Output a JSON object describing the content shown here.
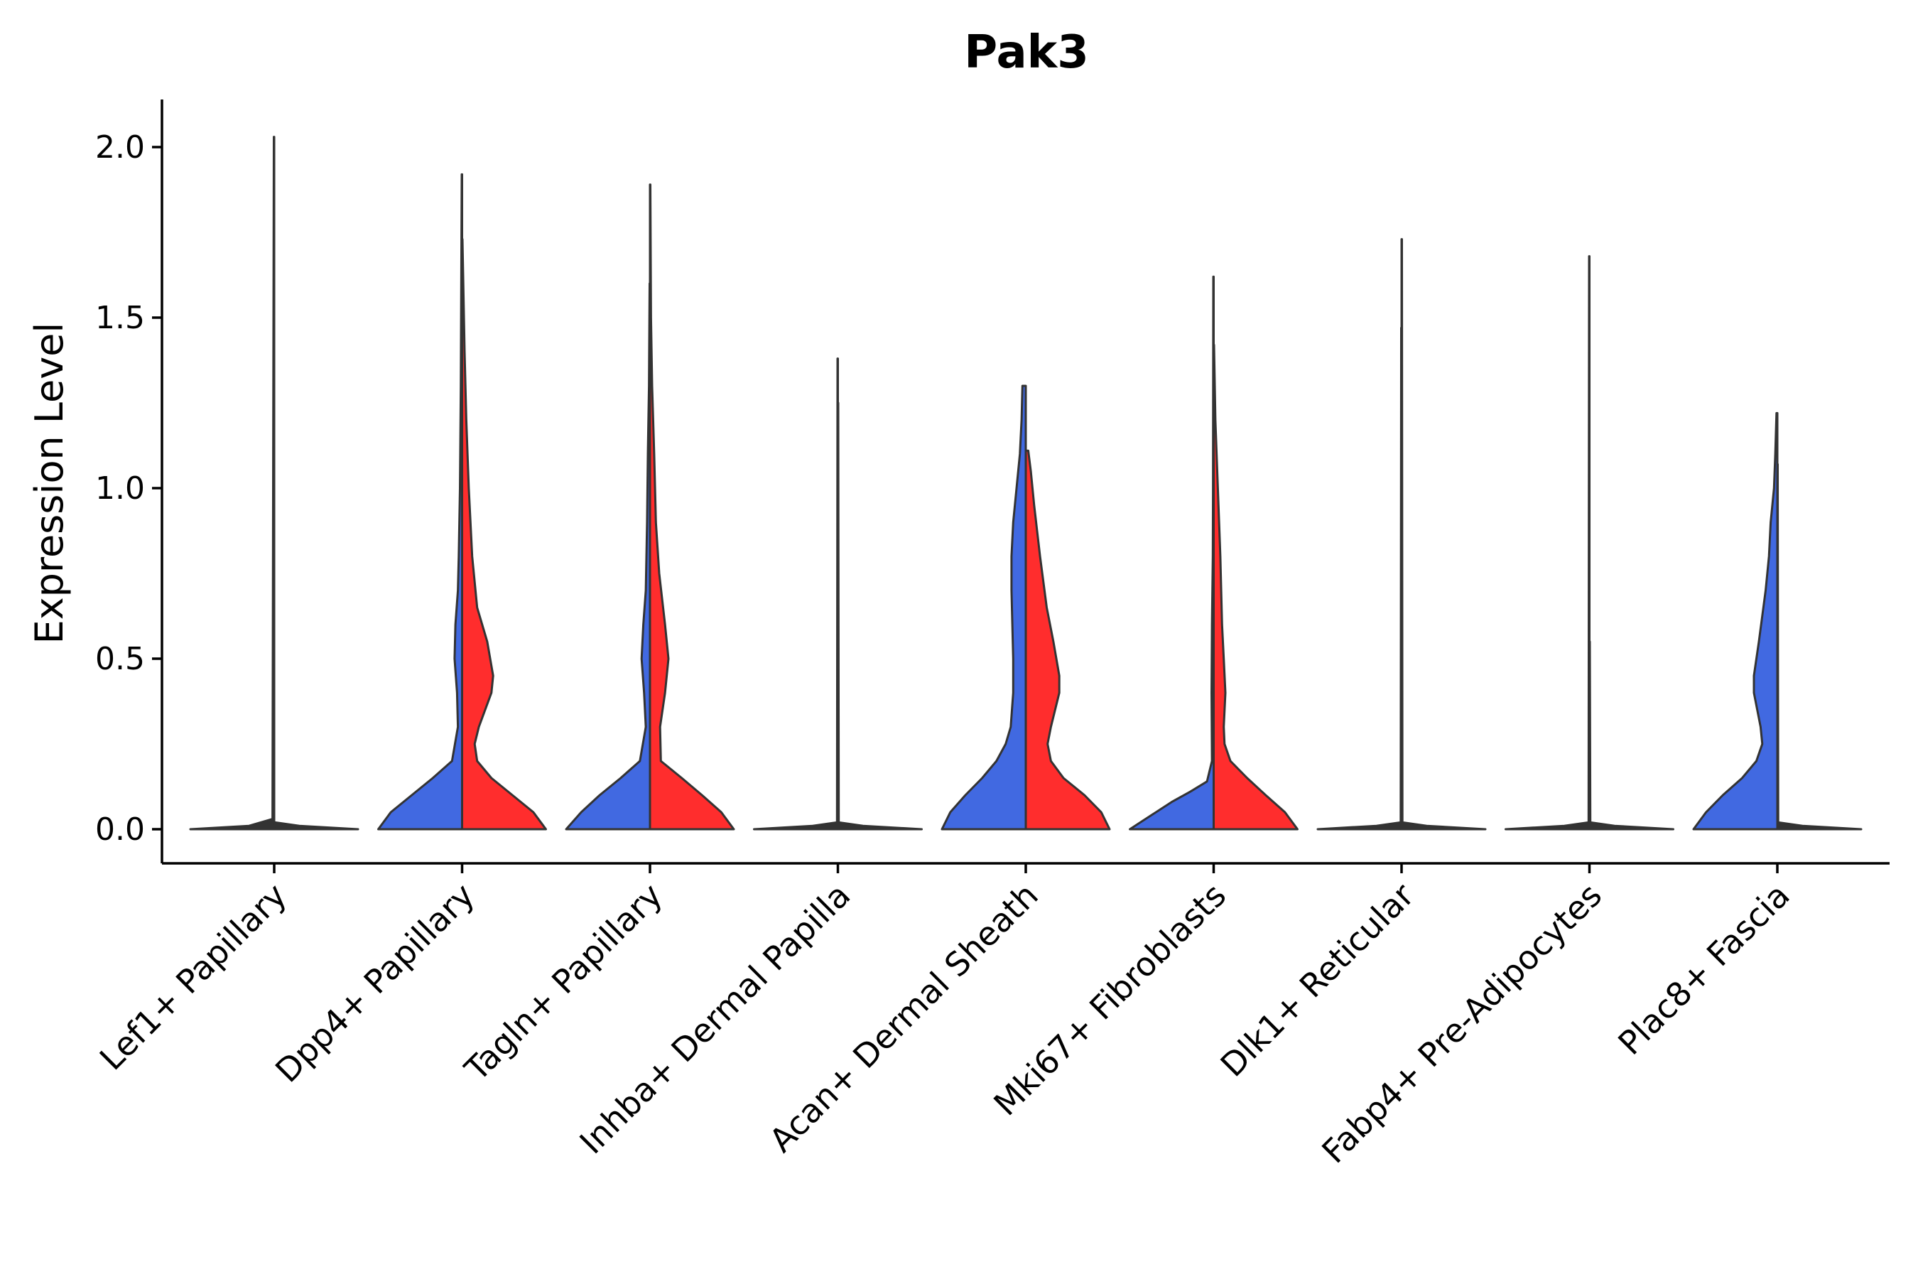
{
  "chart_data": {
    "type": "violin",
    "title": "Pak3",
    "xlabel": "",
    "ylabel": "Expression Level",
    "ylim": [
      -0.1,
      2.15
    ],
    "yticks": [
      "0.0",
      "0.5",
      "1.0",
      "1.5",
      "2.0"
    ],
    "ytick_values": [
      0.0,
      0.5,
      1.0,
      1.5,
      2.0
    ],
    "grid": false,
    "split_colors": {
      "left": "#4169E1",
      "right": "#FF2D2D",
      "outline": "#333333"
    },
    "categories": [
      "Lef1+ Papillary",
      "Dpp4+ Papillary",
      "Tagln+ Papillary",
      "Inhba+ Dermal Papilla",
      "Acan+ Dermal Sheath",
      "Mki67+ Fibroblasts",
      "Dlk1+ Reticular",
      "Fabp4+ Pre-Adipocytes",
      "Plac8+ Fascia"
    ],
    "violins": [
      {
        "category": "Lef1+ Papillary",
        "side": "left",
        "fill": "",
        "max": 2.03,
        "profile": [
          [
            0,
            1
          ],
          [
            0.01,
            0.3
          ],
          [
            0.03,
            0.02
          ],
          [
            2.03,
            0.004
          ]
        ]
      },
      {
        "category": "Lef1+ Papillary",
        "side": "right",
        "fill": "",
        "max": 0.0,
        "profile": [
          [
            0,
            1
          ],
          [
            0.01,
            0.3
          ],
          [
            0.02,
            0.01
          ]
        ]
      },
      {
        "category": "Dpp4+ Papillary",
        "side": "left",
        "fill": "#4169E1",
        "max": 1.92,
        "profile": [
          [
            0,
            1
          ],
          [
            0.05,
            0.85
          ],
          [
            0.1,
            0.6
          ],
          [
            0.15,
            0.35
          ],
          [
            0.2,
            0.12
          ],
          [
            0.3,
            0.05
          ],
          [
            0.4,
            0.06
          ],
          [
            0.5,
            0.09
          ],
          [
            0.6,
            0.08
          ],
          [
            0.7,
            0.05
          ],
          [
            0.8,
            0.04
          ],
          [
            1.0,
            0.025
          ],
          [
            1.3,
            0.015
          ],
          [
            1.92,
            0.004
          ]
        ]
      },
      {
        "category": "Dpp4+ Papillary",
        "side": "right",
        "fill": "#FF2D2D",
        "max": 1.73,
        "profile": [
          [
            0,
            1
          ],
          [
            0.05,
            0.85
          ],
          [
            0.1,
            0.6
          ],
          [
            0.15,
            0.35
          ],
          [
            0.2,
            0.18
          ],
          [
            0.25,
            0.15
          ],
          [
            0.3,
            0.2
          ],
          [
            0.4,
            0.35
          ],
          [
            0.45,
            0.37
          ],
          [
            0.55,
            0.3
          ],
          [
            0.65,
            0.18
          ],
          [
            0.8,
            0.12
          ],
          [
            1.0,
            0.08
          ],
          [
            1.2,
            0.05
          ],
          [
            1.4,
            0.03
          ],
          [
            1.73,
            0.004
          ]
        ]
      },
      {
        "category": "Tagln+ Papillary",
        "side": "left",
        "fill": "#4169E1",
        "max": 1.6,
        "profile": [
          [
            0,
            1
          ],
          [
            0.05,
            0.82
          ],
          [
            0.1,
            0.6
          ],
          [
            0.15,
            0.35
          ],
          [
            0.2,
            0.12
          ],
          [
            0.3,
            0.05
          ],
          [
            0.4,
            0.07
          ],
          [
            0.5,
            0.1
          ],
          [
            0.6,
            0.08
          ],
          [
            0.7,
            0.05
          ],
          [
            0.9,
            0.035
          ],
          [
            1.1,
            0.025
          ],
          [
            1.3,
            0.012
          ],
          [
            1.6,
            0.004
          ]
        ]
      },
      {
        "category": "Tagln+ Papillary",
        "side": "right",
        "fill": "#FF2D2D",
        "max": 1.89,
        "profile": [
          [
            0,
            1
          ],
          [
            0.05,
            0.85
          ],
          [
            0.1,
            0.62
          ],
          [
            0.15,
            0.38
          ],
          [
            0.2,
            0.13
          ],
          [
            0.3,
            0.12
          ],
          [
            0.4,
            0.18
          ],
          [
            0.5,
            0.22
          ],
          [
            0.6,
            0.18
          ],
          [
            0.75,
            0.11
          ],
          [
            0.9,
            0.07
          ],
          [
            1.1,
            0.05
          ],
          [
            1.3,
            0.025
          ],
          [
            1.5,
            0.012
          ],
          [
            1.89,
            0.004
          ]
        ]
      },
      {
        "category": "Inhba+ Dermal Papilla",
        "side": "left",
        "fill": "",
        "max": 1.38,
        "profile": [
          [
            0,
            1
          ],
          [
            0.01,
            0.3
          ],
          [
            0.02,
            0.01
          ],
          [
            1.38,
            0.004
          ]
        ]
      },
      {
        "category": "Inhba+ Dermal Papilla",
        "side": "right",
        "fill": "",
        "max": 1.25,
        "profile": [
          [
            0,
            1
          ],
          [
            0.01,
            0.3
          ],
          [
            0.02,
            0.01
          ],
          [
            1.25,
            0.004
          ]
        ]
      },
      {
        "category": "Acan+ Dermal Sheath",
        "side": "left",
        "fill": "#4169E1",
        "max": 1.3,
        "profile": [
          [
            0,
            1
          ],
          [
            0.05,
            0.9
          ],
          [
            0.1,
            0.72
          ],
          [
            0.15,
            0.52
          ],
          [
            0.2,
            0.35
          ],
          [
            0.25,
            0.24
          ],
          [
            0.3,
            0.18
          ],
          [
            0.4,
            0.15
          ],
          [
            0.5,
            0.15
          ],
          [
            0.6,
            0.16
          ],
          [
            0.7,
            0.17
          ],
          [
            0.8,
            0.17
          ],
          [
            0.9,
            0.15
          ],
          [
            1.0,
            0.11
          ],
          [
            1.1,
            0.07
          ],
          [
            1.2,
            0.05
          ],
          [
            1.3,
            0.04
          ]
        ]
      },
      {
        "category": "Acan+ Dermal Sheath",
        "side": "right",
        "fill": "#FF2D2D",
        "max": 1.11,
        "profile": [
          [
            0,
            1
          ],
          [
            0.05,
            0.9
          ],
          [
            0.1,
            0.7
          ],
          [
            0.15,
            0.45
          ],
          [
            0.2,
            0.3
          ],
          [
            0.25,
            0.26
          ],
          [
            0.3,
            0.3
          ],
          [
            0.4,
            0.4
          ],
          [
            0.45,
            0.4
          ],
          [
            0.55,
            0.33
          ],
          [
            0.65,
            0.25
          ],
          [
            0.8,
            0.17
          ],
          [
            0.95,
            0.1
          ],
          [
            1.05,
            0.06
          ],
          [
            1.11,
            0.03
          ]
        ]
      },
      {
        "category": "Mki67+ Fibroblasts",
        "side": "left",
        "fill": "#4169E1",
        "max": 1.62,
        "profile": [
          [
            0,
            1
          ],
          [
            0.04,
            0.75
          ],
          [
            0.08,
            0.5
          ],
          [
            0.11,
            0.28
          ],
          [
            0.14,
            0.08
          ],
          [
            0.2,
            0.02
          ],
          [
            0.4,
            0.025
          ],
          [
            0.6,
            0.02
          ],
          [
            0.8,
            0.01
          ],
          [
            1.0,
            0.008
          ],
          [
            1.62,
            0.004
          ]
        ]
      },
      {
        "category": "Mki67+ Fibroblasts",
        "side": "right",
        "fill": "#FF2D2D",
        "max": 1.42,
        "profile": [
          [
            0,
            1
          ],
          [
            0.05,
            0.85
          ],
          [
            0.1,
            0.62
          ],
          [
            0.15,
            0.4
          ],
          [
            0.2,
            0.2
          ],
          [
            0.25,
            0.13
          ],
          [
            0.3,
            0.12
          ],
          [
            0.4,
            0.14
          ],
          [
            0.5,
            0.12
          ],
          [
            0.6,
            0.1
          ],
          [
            0.8,
            0.08
          ],
          [
            1.0,
            0.05
          ],
          [
            1.2,
            0.02
          ],
          [
            1.42,
            0.004
          ]
        ]
      },
      {
        "category": "Dlk1+ Reticular",
        "side": "left",
        "fill": "",
        "max": 1.47,
        "profile": [
          [
            0,
            1
          ],
          [
            0.01,
            0.3
          ],
          [
            0.02,
            0.01
          ],
          [
            1.47,
            0.004
          ]
        ]
      },
      {
        "category": "Dlk1+ Reticular",
        "side": "right",
        "fill": "",
        "max": 1.73,
        "profile": [
          [
            0,
            1
          ],
          [
            0.01,
            0.3
          ],
          [
            0.02,
            0.01
          ],
          [
            1.73,
            0.004
          ]
        ]
      },
      {
        "category": "Fabp4+ Pre-Adipocytes",
        "side": "left",
        "fill": "",
        "max": 1.68,
        "profile": [
          [
            0,
            1
          ],
          [
            0.01,
            0.3
          ],
          [
            0.02,
            0.01
          ],
          [
            1.68,
            0.004
          ]
        ]
      },
      {
        "category": "Fabp4+ Pre-Adipocytes",
        "side": "right",
        "fill": "",
        "max": 0.55,
        "profile": [
          [
            0,
            1
          ],
          [
            0.01,
            0.3
          ],
          [
            0.02,
            0.01
          ],
          [
            0.55,
            0.004
          ]
        ]
      },
      {
        "category": "Plac8+ Fascia",
        "side": "left",
        "fill": "#4169E1",
        "max": 1.22,
        "profile": [
          [
            0,
            1
          ],
          [
            0.05,
            0.85
          ],
          [
            0.1,
            0.65
          ],
          [
            0.15,
            0.42
          ],
          [
            0.2,
            0.25
          ],
          [
            0.25,
            0.18
          ],
          [
            0.3,
            0.2
          ],
          [
            0.4,
            0.28
          ],
          [
            0.45,
            0.28
          ],
          [
            0.55,
            0.22
          ],
          [
            0.7,
            0.14
          ],
          [
            0.8,
            0.1
          ],
          [
            0.9,
            0.08
          ],
          [
            1.0,
            0.04
          ],
          [
            1.1,
            0.025
          ],
          [
            1.22,
            0.01
          ]
        ]
      },
      {
        "category": "Plac8+ Fascia",
        "side": "right",
        "fill": "",
        "max": 1.07,
        "profile": [
          [
            0,
            1
          ],
          [
            0.01,
            0.3
          ],
          [
            0.02,
            0.01
          ],
          [
            1.07,
            0.004
          ]
        ]
      }
    ]
  }
}
